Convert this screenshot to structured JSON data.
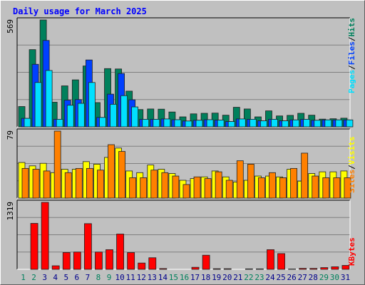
{
  "chart_data": {
    "type": "bar",
    "title": "Daily usage for March 2025",
    "categories": [
      "1",
      "2",
      "3",
      "4",
      "5",
      "6",
      "7",
      "8",
      "9",
      "10",
      "11",
      "12",
      "13",
      "14",
      "15",
      "16",
      "17",
      "18",
      "19",
      "20",
      "21",
      "22",
      "23",
      "24",
      "25",
      "26",
      "27",
      "28",
      "29",
      "30",
      "31"
    ],
    "weekend_days": [
      "1",
      "2",
      "8",
      "9",
      "15",
      "16",
      "22",
      "23",
      "29",
      "30"
    ],
    "panels": [
      {
        "id": "hits",
        "max_label": "569",
        "ylim": [
          0,
          569
        ],
        "right_label_parts": [
          "Pages",
          "/",
          "Files",
          "/",
          "Hits"
        ],
        "series": [
          {
            "name": "Hits",
            "color": "#00805c",
            "values": [
              108,
              411,
              569,
              131,
              218,
              250,
              324,
              129,
              310,
              308,
              190,
              92,
              95,
              94,
              79,
              53,
              69,
              72,
              73,
              62,
              104,
              95,
              53,
              85,
              58,
              61,
              72,
              62,
              41,
              43,
              46
            ]
          },
          {
            "name": "Files",
            "color": "#0040ff",
            "values": [
              45,
              333,
              460,
              40,
              142,
              145,
              356,
              50,
              174,
              284,
              144,
              40,
              40,
              42,
              38,
              31,
              35,
              38,
              36,
              28,
              42,
              40,
              32,
              40,
              32,
              37,
              40,
              35,
              37,
              37,
              37
            ]
          },
          {
            "name": "Pages",
            "color": "#00e0ff",
            "values": [
              45,
              236,
              300,
              40,
              115,
              125,
              236,
              50,
              120,
              166,
              106,
              40,
              40,
              42,
              38,
              31,
              35,
              38,
              36,
              28,
              42,
              40,
              32,
              40,
              32,
              37,
              40,
              35,
              37,
              37,
              37
            ]
          }
        ]
      },
      {
        "id": "visits",
        "max_label": "79",
        "ylim": [
          0,
          79
        ],
        "right_label_parts": [
          "Sites",
          "/",
          "Visits"
        ],
        "series": [
          {
            "name": "Visits",
            "color": "#ffff00",
            "values": [
              42,
              38,
              41,
              30,
              34,
              34,
              43,
              40,
              48,
              59,
              32,
              30,
              39,
              34,
              29,
              21,
              23,
              25,
              32,
              25,
              19,
              21,
              26,
              26,
              25,
              34,
              20,
              29,
              31,
              31,
              32
            ]
          },
          {
            "name": "Sites",
            "color": "#ff8000",
            "values": [
              35,
              34,
              32,
              79,
              30,
              35,
              35,
              33,
              63,
              55,
              24,
              24,
              33,
              30,
              26,
              16,
              25,
              23,
              31,
              21,
              44,
              40,
              24,
              30,
              24,
              35,
              53,
              26,
              24,
              24,
              24
            ]
          }
        ]
      },
      {
        "id": "kbytes",
        "max_label": "1319",
        "ylim": [
          0,
          1319
        ],
        "right_label_parts": [
          "KBytes"
        ],
        "series": [
          {
            "name": "KBytes",
            "color": "#ff0000",
            "values": [
              0,
              905,
              1319,
              70,
              331,
              340,
              900,
              340,
              387,
              695,
              330,
              124,
              228,
              15,
              0,
              0,
              40,
              278,
              12,
              12,
              0,
              9,
              9,
              387,
              310,
              6,
              19,
              18,
              34,
              50,
              77
            ]
          }
        ]
      }
    ]
  },
  "colors": {
    "title": "#0000ff",
    "weekday_label": "#00008b",
    "weekend_label": "#00805c",
    "separator": "#000000",
    "grid": "#808080",
    "plot_bg": "#c0c0c0"
  }
}
